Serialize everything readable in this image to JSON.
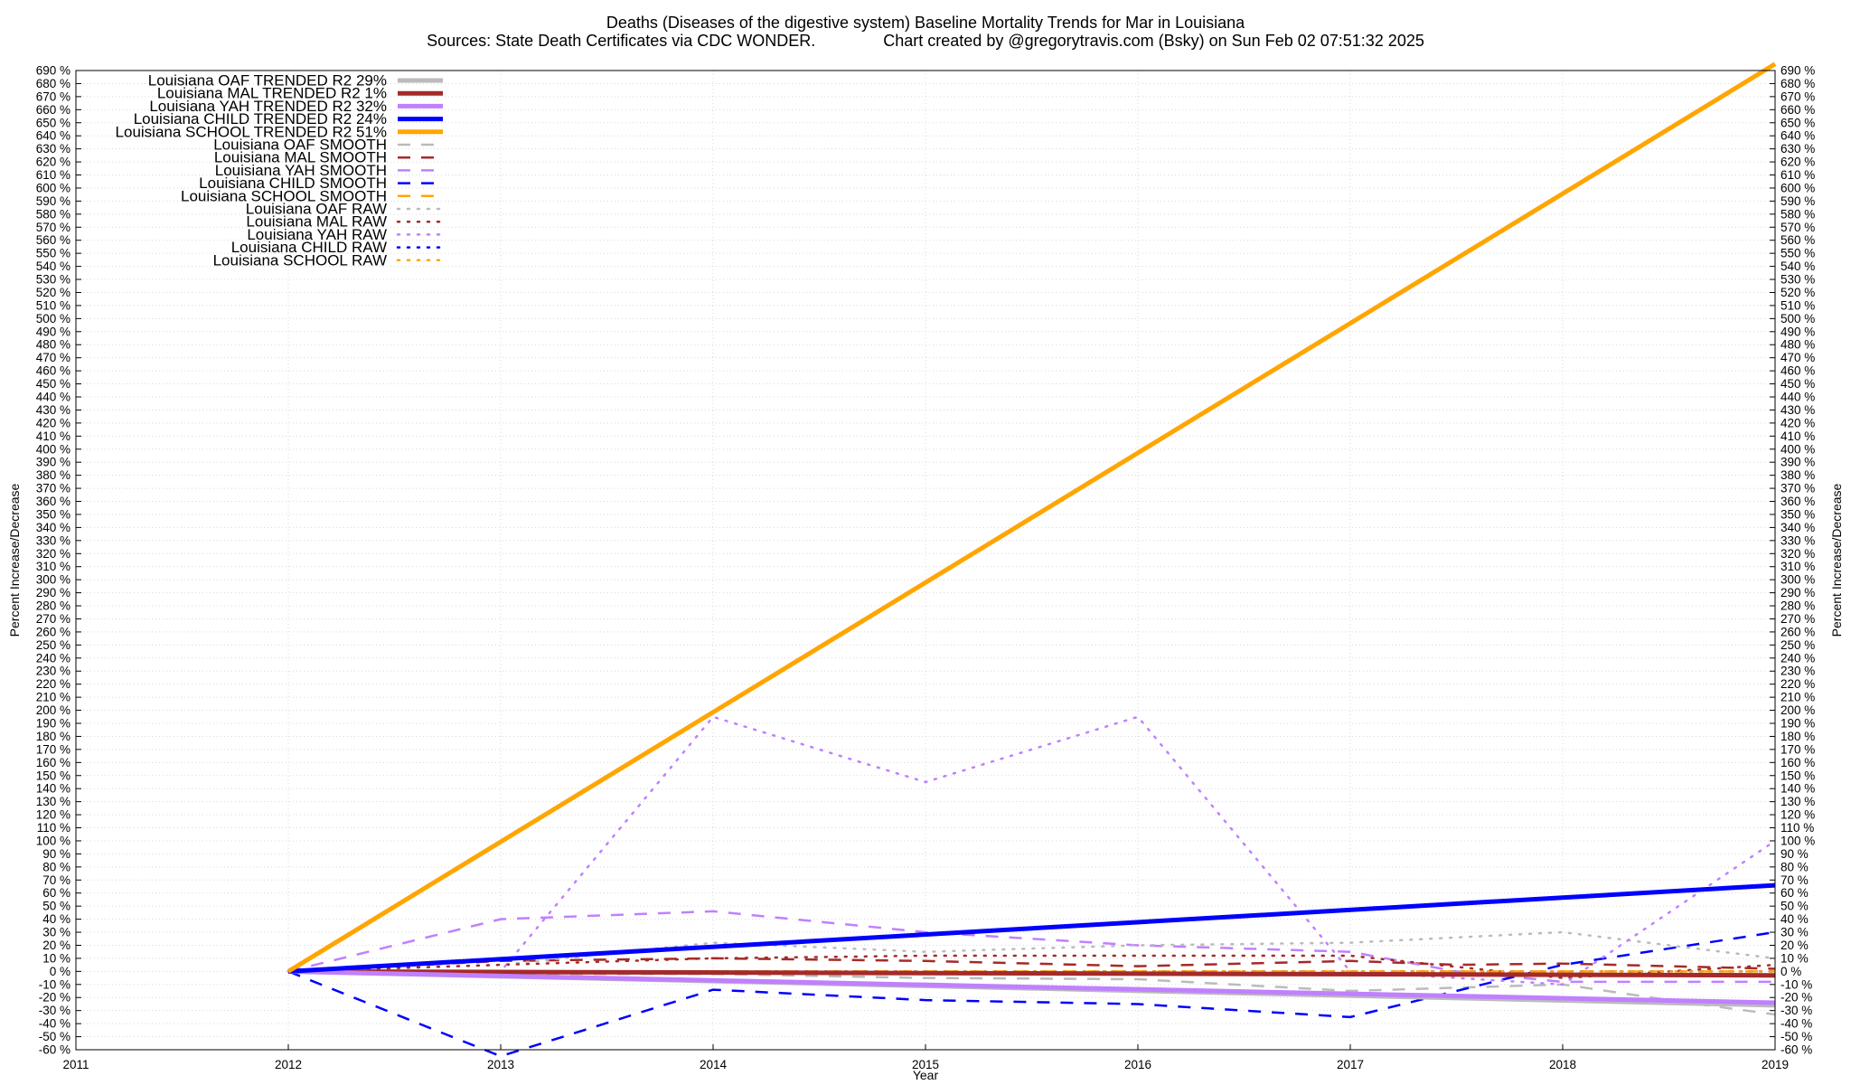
{
  "chart_data": {
    "type": "line",
    "title": "Deaths (Diseases of the digestive system)  Baseline Mortality Trends for Mar in Louisiana",
    "subtitle": "Sources: State Death Certificates via CDC WONDER.               Chart created by @gregorytravis.com (Bsky) on Sun Feb 02 07:51:32 2025",
    "xlabel": "Year",
    "ylabel": "Percent Increase/Decrease",
    "y2label": "Percent Increase/Decrease",
    "xlim": [
      2011,
      2019
    ],
    "ylim": [
      -60,
      690
    ],
    "y_tick_step": 10,
    "y_tick_suffix": " %",
    "x_ticks": [
      2011,
      2012,
      2013,
      2014,
      2015,
      2016,
      2017,
      2018,
      2019
    ],
    "grid": true,
    "legend_position": "top-left",
    "series": [
      {
        "name": "Louisiana OAF TRENDED R2  29%",
        "color": "#bbbbbb",
        "style": "solid-thick",
        "x": [
          2012,
          2019
        ],
        "values": [
          0,
          -26
        ]
      },
      {
        "name": "Louisiana MAL TRENDED R2   1%",
        "color": "#a52a2a",
        "style": "solid-thick",
        "x": [
          2012,
          2019
        ],
        "values": [
          0,
          -3
        ]
      },
      {
        "name": "Louisiana YAH TRENDED R2  32%",
        "color": "#c080ff",
        "style": "solid-thick",
        "x": [
          2012,
          2019
        ],
        "values": [
          0,
          -24
        ]
      },
      {
        "name": "Louisiana CHILD TRENDED R2  24%",
        "color": "#0000ff",
        "style": "solid-thick",
        "x": [
          2012,
          2019
        ],
        "values": [
          0,
          66
        ]
      },
      {
        "name": "Louisiana SCHOOL TRENDED R2  51%",
        "color": "#ffa500",
        "style": "solid-thick",
        "x": [
          2012,
          2019
        ],
        "values": [
          0,
          695
        ]
      },
      {
        "name": "Louisiana OAF SMOOTH",
        "color": "#bbbbbb",
        "style": "dashed",
        "x": [
          2012,
          2013,
          2014,
          2015,
          2016,
          2017,
          2018,
          2018.5,
          2019
        ],
        "values": [
          0,
          -2,
          -2,
          -5,
          -6,
          -15,
          -10,
          -22,
          -33
        ]
      },
      {
        "name": "Louisiana MAL SMOOTH",
        "color": "#a52a2a",
        "style": "dashed",
        "x": [
          2012,
          2013,
          2014,
          2015,
          2016,
          2017,
          2017.5,
          2018,
          2019
        ],
        "values": [
          0,
          8,
          10,
          8,
          4,
          8,
          5,
          6,
          2
        ]
      },
      {
        "name": "Louisiana YAH SMOOTH",
        "color": "#c080ff",
        "style": "dashed",
        "x": [
          2012,
          2012.5,
          2013,
          2014,
          2015,
          2016,
          2017,
          2017.5,
          2018,
          2019
        ],
        "values": [
          0,
          20,
          40,
          46,
          30,
          20,
          15,
          0,
          -8,
          -8
        ]
      },
      {
        "name": "Louisiana CHILD SMOOTH",
        "color": "#0000ff",
        "style": "dashed",
        "x": [
          2012,
          2013,
          2014,
          2015,
          2016,
          2017,
          2018,
          2019
        ],
        "values": [
          0,
          -65,
          -14,
          -22,
          -25,
          -35,
          5,
          30
        ]
      },
      {
        "name": "Louisiana SCHOOL SMOOTH",
        "color": "#ffa500",
        "style": "dashed",
        "x": [
          2012,
          2013,
          2014,
          2015,
          2016,
          2017,
          2018,
          2019
        ],
        "values": [
          0,
          0,
          0,
          0,
          0,
          0,
          0,
          0
        ]
      },
      {
        "name": "Louisiana OAF RAW",
        "color": "#bbbbbb",
        "style": "dotted",
        "x": [
          2012,
          2013,
          2014,
          2015,
          2016,
          2017,
          2018,
          2019
        ],
        "values": [
          0,
          5,
          22,
          15,
          20,
          22,
          30,
          10
        ]
      },
      {
        "name": "Louisiana MAL RAW",
        "color": "#a52a2a",
        "style": "dotted",
        "x": [
          2012,
          2013,
          2014,
          2015,
          2016,
          2017,
          2018,
          2019
        ],
        "values": [
          0,
          5,
          10,
          12,
          12,
          12,
          -5,
          5
        ]
      },
      {
        "name": "Louisiana YAH RAW",
        "color": "#c080ff",
        "style": "dotted",
        "x": [
          2012,
          2013,
          2014,
          2015,
          2016,
          2017,
          2018,
          2019
        ],
        "values": [
          0,
          0,
          195,
          145,
          195,
          0,
          -10,
          100
        ]
      },
      {
        "name": "Louisiana CHILD RAW",
        "color": "#0000ff",
        "style": "dotted",
        "x": [
          2012,
          2013,
          2014,
          2015,
          2016,
          2017,
          2018,
          2019
        ],
        "values": [
          0,
          0,
          0,
          0,
          0,
          0,
          0,
          0
        ]
      },
      {
        "name": "Louisiana SCHOOL RAW",
        "color": "#ffa500",
        "style": "dotted",
        "x": [
          2012,
          2013,
          2014,
          2015,
          2016,
          2017,
          2018,
          2019
        ],
        "values": [
          0,
          0,
          0,
          0,
          0,
          0,
          0,
          0
        ]
      }
    ]
  }
}
